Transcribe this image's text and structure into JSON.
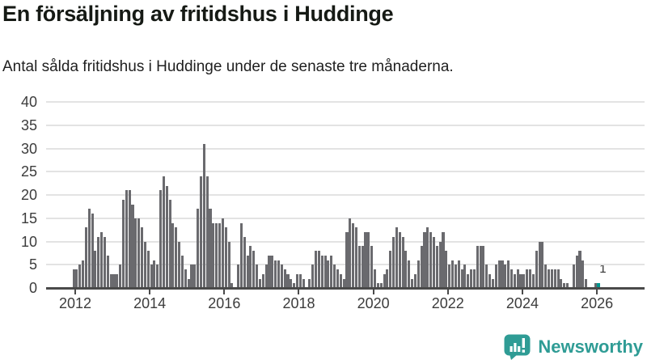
{
  "title": "En försäljning av fritidshus i Huddinge",
  "subtitle": "Antal sålda fritidshus i Huddinge under de senaste tre månaderna.",
  "chart_data": {
    "type": "bar",
    "title": "En försäljning av fritidshus i Huddinge",
    "subtitle": "Antal sålda fritidshus i Huddinge under de senaste tre månaderna.",
    "frequency": "monthly",
    "start_month": "2011-12",
    "end_month": "2026-01",
    "values": [
      4,
      4,
      5,
      6,
      13,
      17,
      16,
      8,
      11,
      12,
      11,
      7,
      3,
      3,
      3,
      5,
      19,
      21,
      21,
      18,
      15,
      15,
      13,
      10,
      8,
      5,
      6,
      5,
      21,
      24,
      22,
      19,
      14,
      13,
      10,
      7,
      4,
      2,
      5,
      5,
      17,
      24,
      31,
      24,
      17,
      14,
      14,
      14,
      15,
      13,
      10,
      1,
      0,
      5,
      14,
      11,
      7,
      9,
      8,
      5,
      2,
      3,
      5,
      7,
      7,
      6,
      6,
      5,
      4,
      3,
      2,
      1,
      3,
      3,
      2,
      0,
      2,
      5,
      8,
      8,
      7,
      7,
      6,
      7,
      5,
      4,
      3,
      2,
      12,
      15,
      14,
      13,
      9,
      9,
      12,
      12,
      9,
      4,
      1,
      1,
      3,
      4,
      8,
      11,
      13,
      12,
      11,
      8,
      6,
      2,
      3,
      6,
      9,
      12,
      13,
      12,
      11,
      9,
      10,
      12,
      8,
      5,
      6,
      5,
      6,
      4,
      5,
      3,
      4,
      4,
      9,
      9,
      9,
      5,
      3,
      2,
      5,
      6,
      6,
      5,
      6,
      4,
      3,
      4,
      3,
      3,
      4,
      4,
      3,
      8,
      10,
      10,
      5,
      4,
      4,
      4,
      4,
      2,
      1,
      1,
      0,
      5,
      7,
      8,
      6,
      2,
      0,
      0,
      1,
      1
    ],
    "ylim": [
      0,
      40
    ],
    "yticks": [
      0,
      5,
      10,
      15,
      20,
      25,
      30,
      35,
      40
    ],
    "year_ticks": [
      2012,
      2014,
      2016,
      2018,
      2020,
      2022,
      2024,
      2026
    ],
    "grid": true,
    "legend_position": "none",
    "bar_color": "#6a6a6e",
    "highlight_color": "#00968e",
    "highlight_last_bar": true,
    "last_value_label": "1"
  },
  "branding": {
    "logo_text": "Newsworthy",
    "logo_color": "#2f9c95"
  }
}
